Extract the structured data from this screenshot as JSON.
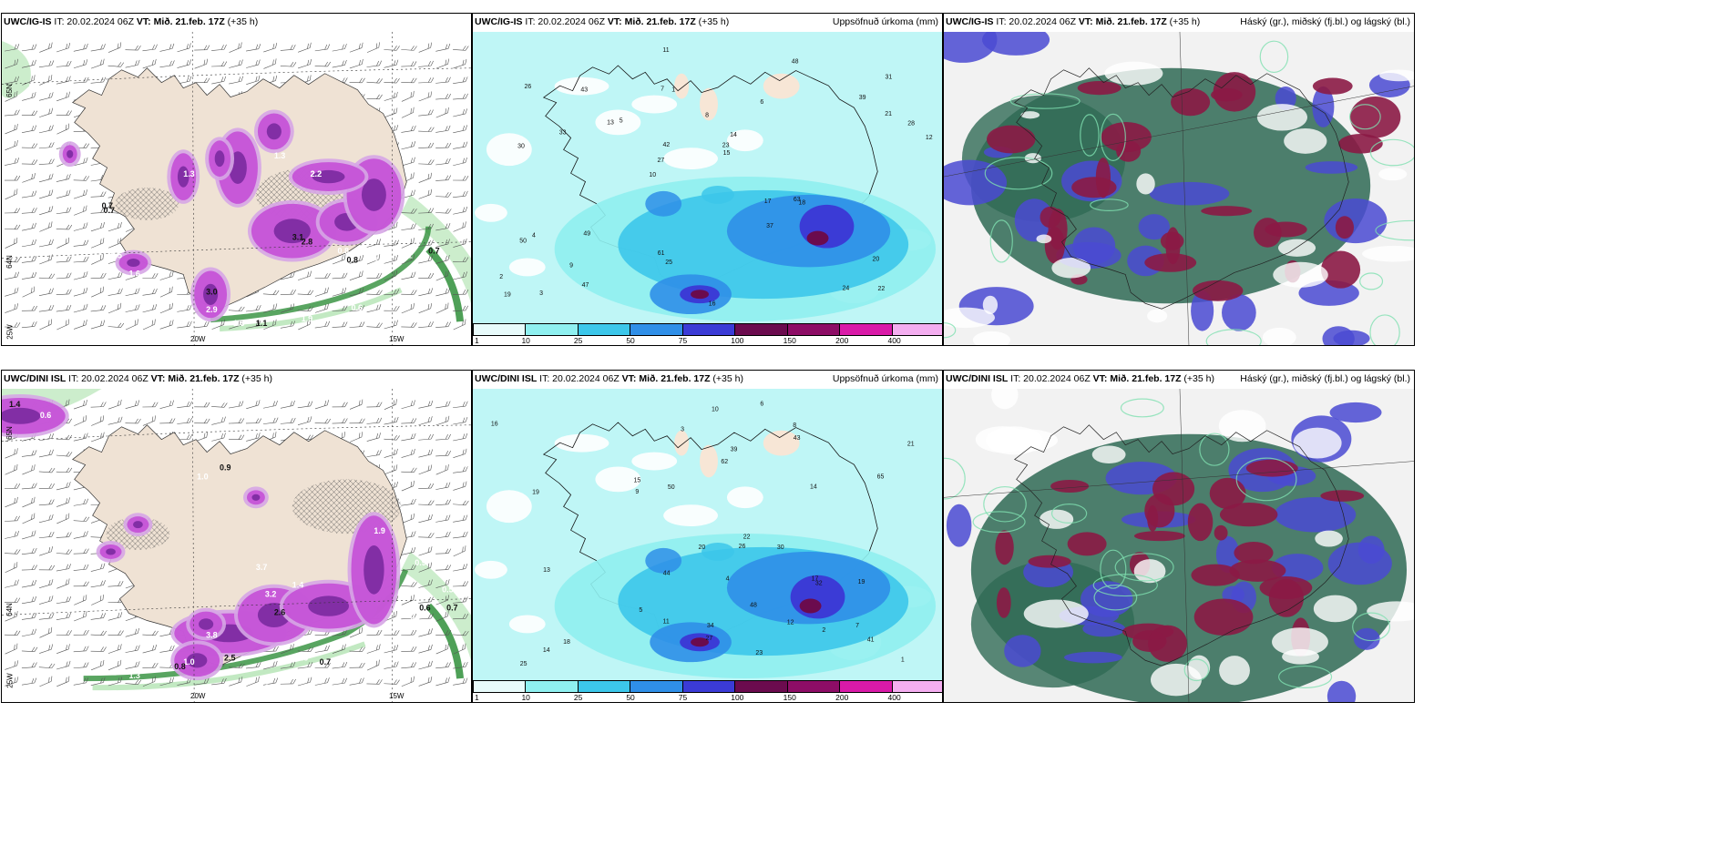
{
  "panels": [
    {
      "id": "p1",
      "title_model": "UWC/IG-IS",
      "title_rest": " IT: 20.02.2024 06Z ",
      "title_vt": "VT: Mið. 21.feb. 17Z",
      "title_lead": " (+35 h)",
      "right_label": "",
      "type": "precip-wind",
      "labels": [
        "0.7",
        "0.5",
        "1.6",
        "3.0",
        "2.9",
        "1.3",
        "2.8",
        "2.2",
        "1.1",
        "0.8",
        "1.2",
        "0.9",
        "0.7",
        "0.6",
        "1.5",
        "1.1",
        "1.9",
        "2.2",
        "0.7",
        "1.3",
        "0.8",
        "3.1"
      ],
      "axis": {
        "lat_top": "65N",
        "lat_mid": "64N",
        "lon_left": "25W",
        "lon_bottom_1": "20W",
        "lon_bottom_2": "15W"
      }
    },
    {
      "id": "p2",
      "title_model": "UWC/IG-IS",
      "title_rest": " IT: 20.02.2024 06Z ",
      "title_vt": "VT: Mið. 21.feb. 17Z",
      "title_lead": " (+35 h)",
      "right_label": "Uppsöfnuð úrkoma (mm)",
      "type": "accum",
      "numbers": [
        "22",
        "30",
        "31",
        "10",
        "6",
        "3",
        "7",
        "8",
        "4",
        "5",
        "2",
        "9",
        "1",
        "14",
        "18",
        "26",
        "11",
        "12",
        "17",
        "21",
        "27",
        "61",
        "42",
        "43",
        "48",
        "49",
        "24",
        "20",
        "63",
        "16",
        "13",
        "33",
        "37",
        "47",
        "28",
        "23",
        "19",
        "25",
        "15",
        "50",
        "39"
      ]
    },
    {
      "id": "p3",
      "title_model": "UWC/IG-IS",
      "title_rest": " IT: 20.02.2024 06Z ",
      "title_vt": "VT: Mið. 21.feb. 17Z",
      "title_lead": " (+35 h)",
      "right_label": "Háský (gr.), miðský (fj.bl.) og lágský (bl.)",
      "type": "clouds"
    },
    {
      "id": "p4",
      "title_model": "UWC/DINI ISL",
      "title_rest": " IT: 20.02.2024 06Z ",
      "title_vt": "VT: Mið. 21.feb. 17Z",
      "title_lead": " (+35 h)",
      "right_label": "",
      "type": "precip-wind",
      "labels": [
        "1.4",
        "0.6",
        "1.0",
        "0.9",
        "3.7",
        "3.2",
        "2.6",
        "1.4",
        "3.8",
        "2.5",
        "1.3",
        "1.0",
        "0.8",
        "0.5",
        "0.7",
        "0.6",
        "0.9",
        "0.5",
        "0.7",
        "3.4",
        "1.9",
        "0.7"
      ],
      "axis": {
        "lat_top": "65N",
        "lat_mid": "64N",
        "lon_left": "25W",
        "lon_bottom_1": "20W",
        "lon_bottom_2": "15W"
      }
    },
    {
      "id": "p5",
      "title_model": "UWC/DINI ISL",
      "title_rest": " IT: 20.02.2024 06Z ",
      "title_vt": "VT: Mið. 21.feb. 17Z",
      "title_lead": " (+35 h)",
      "right_label": "Uppsöfnuð úrkoma (mm)",
      "type": "accum",
      "numbers": [
        "14",
        "19",
        "22",
        "4",
        "3",
        "6",
        "7",
        "8",
        "2",
        "5",
        "1",
        "9",
        "11",
        "10",
        "12",
        "15",
        "17",
        "13",
        "20",
        "21",
        "16",
        "18",
        "27",
        "30",
        "32",
        "43",
        "50",
        "62",
        "65",
        "48",
        "41",
        "44",
        "39",
        "25",
        "26",
        "23",
        "34",
        "14",
        "19"
      ]
    },
    {
      "id": "p6",
      "title_model": "UWC/DINI ISL",
      "title_rest": " IT: 20.02.2024 06Z ",
      "title_vt": "VT: Mið. 21.feb. 17Z",
      "title_lead": " (+35 h)",
      "right_label": "Háský (gr.), miðský (fj.bl.) og lágský (bl.)",
      "type": "clouds"
    }
  ],
  "colorbar": {
    "labels": [
      "1",
      "10",
      "25",
      "50",
      "75",
      "100",
      "150",
      "200",
      "400"
    ],
    "colors": [
      "#e8fbfb",
      "#8ff0f0",
      "#3cc7ea",
      "#2f8fe8",
      "#3b3bd6",
      "#6b0b4e",
      "#8d0d66",
      "#d91aa8",
      "#f4aef0"
    ]
  },
  "colors": {
    "land": "#efe2d4",
    "precip_light": "#d6a6e6",
    "precip": "#c44fd6",
    "precip_strong": "#7a2aa0",
    "wind_green": "#2f8f3a",
    "wind_light": "#bfe9bf",
    "accum_base": "#bff6f6",
    "cloud_high": "#2f6a55",
    "cloud_mid": "#8b1a45",
    "cloud_low": "#4a4ad2"
  }
}
